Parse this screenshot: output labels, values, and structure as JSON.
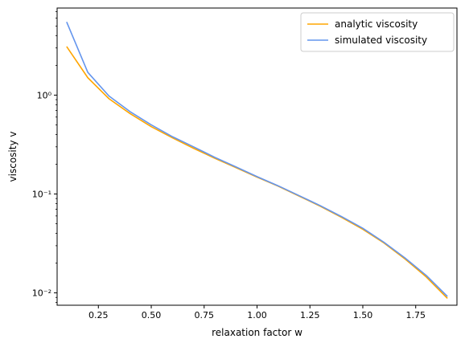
{
  "chart_data": {
    "type": "line",
    "title": "",
    "xlabel": "relaxation factor w",
    "ylabel": "viscosity v",
    "xlim": [
      0.055,
      1.945
    ],
    "ylim": [
      0.0075,
      7.6
    ],
    "yscale": "log",
    "grid": false,
    "legend_position": "top-right",
    "x_ticks": [
      0.25,
      0.5,
      0.75,
      1.0,
      1.25,
      1.5,
      1.75
    ],
    "x_tick_labels": [
      "0.25",
      "0.50",
      "0.75",
      "1.00",
      "1.25",
      "1.50",
      "1.75"
    ],
    "y_ticks": [
      0.01,
      0.1,
      1
    ],
    "y_tick_labels": [
      "10⁻²",
      "10⁻¹",
      "10⁰"
    ],
    "x": [
      0.1,
      0.2,
      0.3,
      0.4,
      0.5,
      0.6,
      0.7,
      0.8,
      0.9,
      1.0,
      1.1,
      1.2,
      1.3,
      1.4,
      1.5,
      1.6,
      1.7,
      1.8,
      1.9
    ],
    "series": [
      {
        "name": "analytic viscosity",
        "color": "#ffa500",
        "values": [
          3.1,
          1.5,
          0.92,
          0.65,
          0.48,
          0.37,
          0.29,
          0.23,
          0.185,
          0.148,
          0.12,
          0.095,
          0.075,
          0.058,
          0.044,
          0.032,
          0.022,
          0.0145,
          0.0088
        ]
      },
      {
        "name": "simulated viscosity",
        "color": "#6495ed",
        "values": [
          5.5,
          1.7,
          0.98,
          0.68,
          0.5,
          0.38,
          0.3,
          0.235,
          0.188,
          0.15,
          0.121,
          0.096,
          0.076,
          0.059,
          0.045,
          0.0325,
          0.0225,
          0.015,
          0.0092
        ]
      }
    ]
  }
}
